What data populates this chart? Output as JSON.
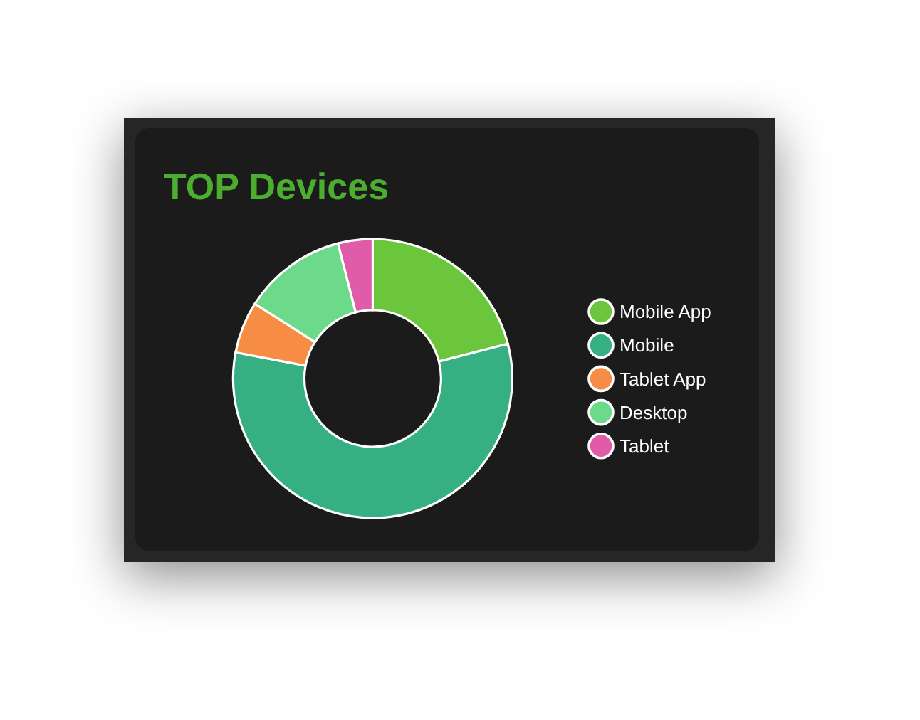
{
  "chart_data": {
    "type": "donut",
    "title": "TOP Devices",
    "categories": [
      "Mobile App",
      "Mobile",
      "Tablet App",
      "Desktop",
      "Tablet"
    ],
    "values": [
      21,
      57,
      6,
      12,
      4
    ],
    "colors": [
      "#6cc63b",
      "#36b083",
      "#f78c45",
      "#6dd98a",
      "#e05ca8"
    ],
    "legend": "right"
  }
}
